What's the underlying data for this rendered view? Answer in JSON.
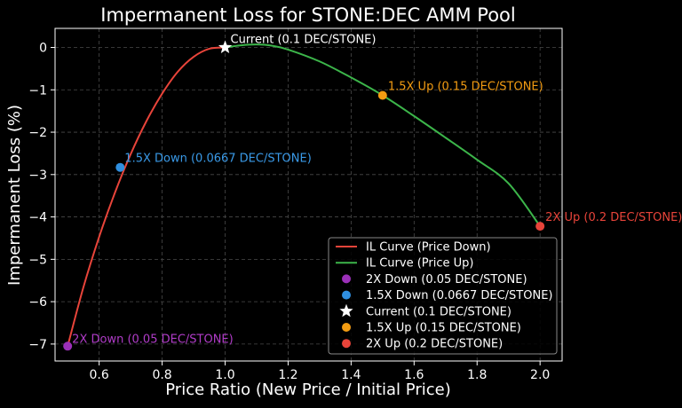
{
  "chart_data": {
    "type": "line",
    "title": "Impermanent Loss for STONE:DEC AMM Pool",
    "xlabel": "Price Ratio (New Price / Initial Price)",
    "ylabel": "Impermanent Loss (%)",
    "xlim": [
      0.46,
      2.07
    ],
    "ylim": [
      -7.4,
      0.45
    ],
    "xticks": [
      0.6,
      0.8,
      1.0,
      1.2,
      1.4,
      1.6,
      1.8,
      2.0
    ],
    "xtick_labels": [
      "0.6",
      "0.8",
      "1.0",
      "1.2",
      "1.4",
      "1.6",
      "1.8",
      "2.0"
    ],
    "yticks": [
      0,
      -1,
      -2,
      -3,
      -4,
      -5,
      -6,
      -7
    ],
    "ytick_labels": [
      "0",
      "−1",
      "−2",
      "−3",
      "−4",
      "−5",
      "−6",
      "−7"
    ],
    "grid": true,
    "legend_position": "lower-right",
    "series": [
      {
        "name": "IL Curve (Price Down)",
        "color": "#e8443a",
        "x": [
          0.5,
          0.55,
          0.6,
          0.65,
          0.7,
          0.75,
          0.8,
          0.85,
          0.9,
          0.95,
          1.0
        ],
        "y": [
          -7.05,
          -5.66,
          -4.47,
          -3.43,
          -2.52,
          -1.74,
          -1.09,
          -0.57,
          -0.22,
          -0.03,
          0.0
        ]
      },
      {
        "name": "IL Curve (Price Up)",
        "color": "#3cb54a",
        "x": [
          1.0,
          1.05,
          1.1,
          1.15,
          1.2,
          1.3,
          1.4,
          1.5,
          1.6,
          1.7,
          1.8,
          1.9,
          2.0
        ],
        "y": [
          0.0,
          0.05,
          0.07,
          0.04,
          -0.05,
          -0.33,
          -0.71,
          -1.13,
          -1.62,
          -2.13,
          -2.65,
          -3.21,
          -4.22
        ]
      }
    ],
    "points": [
      {
        "name": "2X Down (0.05 DEC/STONE)",
        "x": 0.5,
        "y": -7.05,
        "color": "#9b30b8",
        "marker": "circle",
        "label": "2X Down (0.05 DEC/STONE)",
        "label_color": "#b03cc8"
      },
      {
        "name": "1.5X Down (0.0667 DEC/STONE)",
        "x": 0.6667,
        "y": -2.83,
        "color": "#2f8fe0",
        "marker": "circle",
        "label": "1.5X Down (0.0667 DEC/STONE)",
        "label_color": "#3a9ae8"
      },
      {
        "name": "Current (0.1 DEC/STONE)",
        "x": 1.0,
        "y": 0.0,
        "color": "#ffffff",
        "marker": "star",
        "label": "Current (0.1 DEC/STONE)",
        "label_color": "#ffffff"
      },
      {
        "name": "1.5X Up (0.15 DEC/STONE)",
        "x": 1.5,
        "y": -1.13,
        "color": "#f39c12",
        "marker": "circle",
        "label": "1.5X Up (0.15 DEC/STONE)",
        "label_color": "#f39c12"
      },
      {
        "name": "2X Up (0.2 DEC/STONE)",
        "x": 2.0,
        "y": -4.22,
        "color": "#e8443a",
        "marker": "circle",
        "label": "2X Up (0.2 DEC/STONE)",
        "label_color": "#e8443a"
      }
    ]
  }
}
